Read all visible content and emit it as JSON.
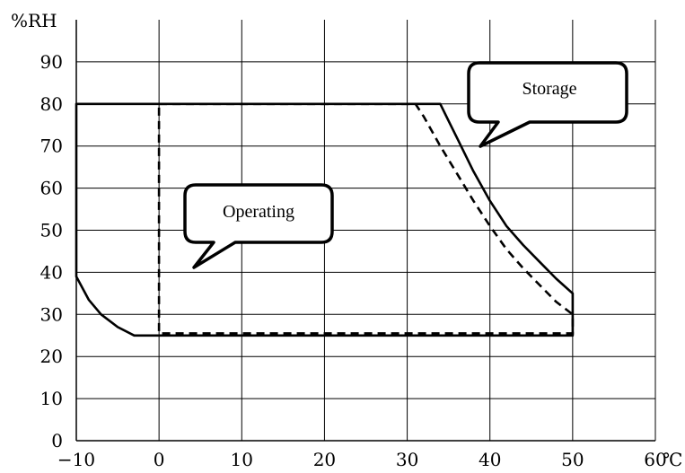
{
  "chart_data": {
    "type": "line",
    "title": "",
    "xlabel": "",
    "ylabel": "",
    "x_unit": "℃",
    "y_unit": "%RH",
    "xlim": [
      -10,
      60
    ],
    "ylim": [
      0,
      100
    ],
    "x_ticks": [
      -10,
      0,
      10,
      20,
      30,
      40,
      50,
      60
    ],
    "y_ticks": [
      0,
      10,
      20,
      30,
      40,
      50,
      60,
      70,
      80,
      90
    ],
    "x_tick_labels": [
      "−10",
      "0",
      "10",
      "20",
      "30",
      "40",
      "50",
      "60"
    ],
    "y_tick_labels": [
      "0",
      "10",
      "20",
      "30",
      "40",
      "50",
      "60",
      "70",
      "80",
      "90"
    ],
    "grid": true,
    "series": [
      {
        "name": "Storage",
        "style": "solid",
        "x": [
          -10,
          -10,
          34,
          35,
          36,
          38,
          40,
          42,
          44,
          46,
          48,
          50,
          50,
          -3,
          -5,
          -7,
          -8.5,
          -10,
          -10
        ],
        "y": [
          42,
          80,
          80,
          76,
          72,
          64,
          57,
          51,
          46.5,
          42.5,
          38.5,
          35,
          25,
          25,
          27,
          30,
          33.5,
          39,
          42
        ]
      },
      {
        "name": "Operating",
        "style": "dashed",
        "x": [
          0,
          31,
          32,
          34,
          36,
          38,
          40,
          42,
          44,
          46,
          48,
          50,
          50,
          0,
          0
        ],
        "y": [
          80,
          80,
          77,
          70,
          63.5,
          57,
          51,
          45.5,
          41,
          37,
          33,
          30,
          25.5,
          25.5,
          80
        ]
      }
    ],
    "annotations": [
      {
        "text": "Storage",
        "points_to": [
          38,
          70
        ]
      },
      {
        "text": "Operating",
        "points_to": [
          2.5,
          40
        ]
      }
    ]
  }
}
